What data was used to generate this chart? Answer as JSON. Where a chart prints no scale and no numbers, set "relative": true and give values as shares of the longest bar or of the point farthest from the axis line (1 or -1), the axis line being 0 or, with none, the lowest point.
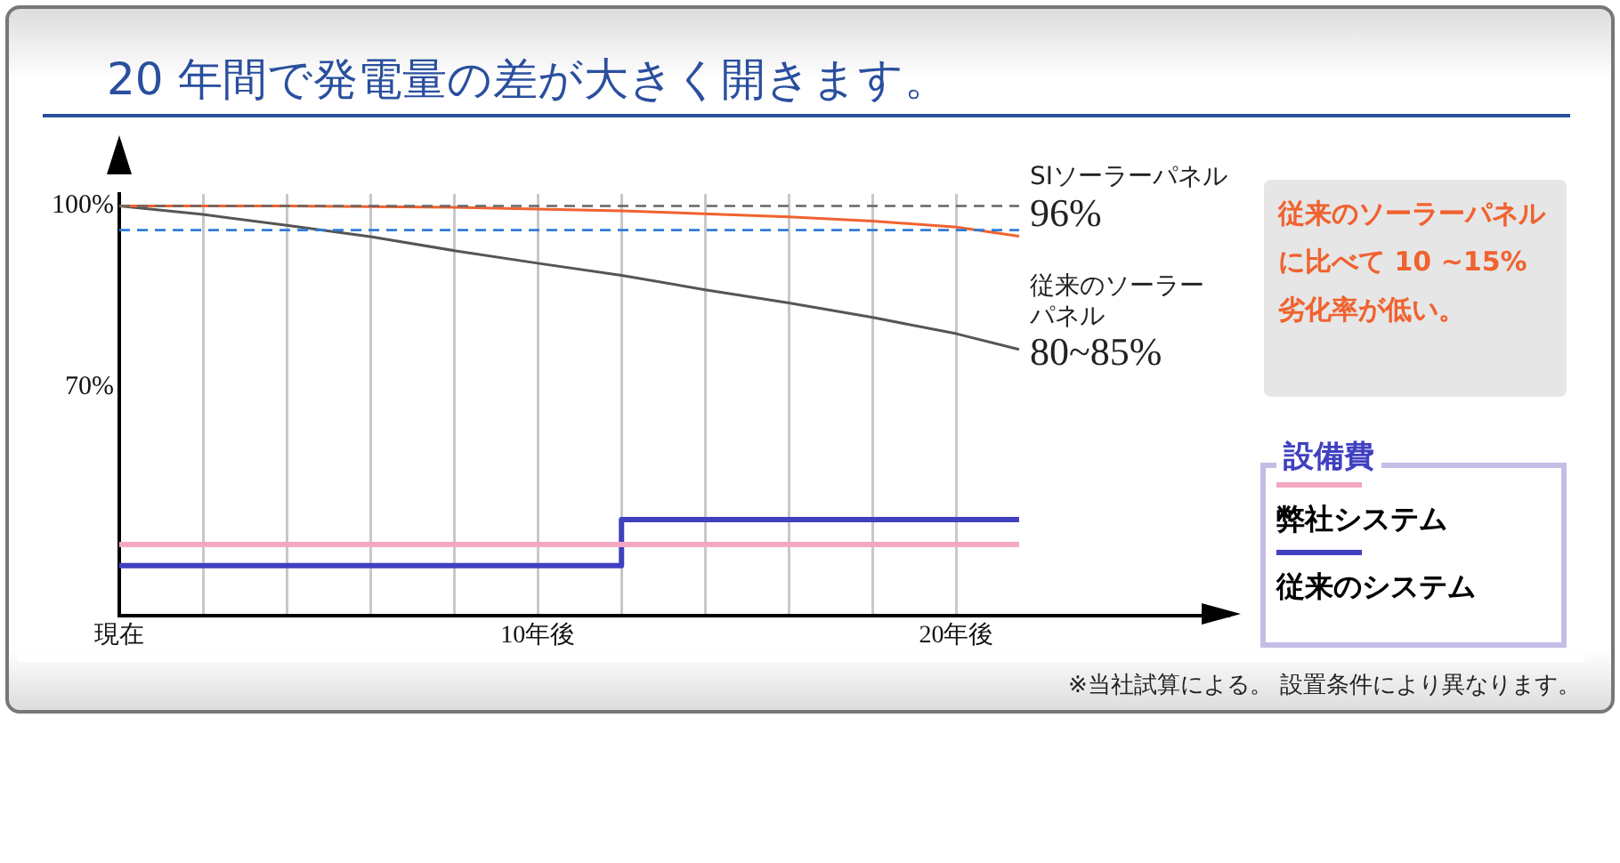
{
  "chart_data": [
    {
      "type": "line",
      "title": "20 年間で発電量の差が大きく開きます。",
      "xlim": [
        0,
        26.5
      ],
      "xticks": [
        {
          "value": 0,
          "label": null
        },
        {
          "value": 2,
          "label": null
        },
        {
          "value": 4,
          "label": null
        },
        {
          "value": 6,
          "label": null
        },
        {
          "value": 8,
          "label": null
        },
        {
          "value": 10,
          "label": null
        },
        {
          "value": 12,
          "label": null
        },
        {
          "value": 14,
          "label": null
        },
        {
          "value": 16,
          "label": null
        },
        {
          "value": 18,
          "label": null
        },
        {
          "value": 20,
          "label": null
        }
      ],
      "ylim": [
        32,
        102
      ],
      "tick_labels": "y",
      "yticks": [
        {
          "value": 70,
          "label": "70%"
        },
        {
          "value": 100,
          "label": "100%"
        }
      ],
      "grid": "x",
      "marker": "none",
      "series": [
        {
          "name": "SIソーラーパネル",
          "color": "#f0622f",
          "x": [
            0,
            4,
            8,
            10,
            12,
            16,
            18,
            20,
            21.5
          ],
          "values": [
            100,
            100,
            99.8,
            99.5,
            99.2,
            98.2,
            97.5,
            96.5,
            95
          ]
        },
        {
          "name": "従来のソーラーパネル",
          "color": "#555555",
          "x": [
            0,
            2,
            4,
            6,
            8,
            10,
            12,
            14,
            16,
            18,
            20,
            21.5
          ],
          "values": [
            100,
            98.6,
            96.8,
            94.9,
            92.6,
            90.5,
            88.5,
            86.1,
            83.9,
            81.5,
            78.8,
            76.2
          ]
        }
      ],
      "ref_lines": [
        {
          "axis": "y",
          "value": 100,
          "color": "#666666",
          "line_style": "dashed"
        },
        {
          "axis": "y",
          "value": 96,
          "color": "#2f7bd6",
          "line_style": "dashed"
        }
      ],
      "annotations": [
        "96%",
        "80~85%",
        "従来のソーラーパネルに比べて 10 ~15%劣化率が低い。"
      ]
    },
    {
      "type": "step",
      "relative": true,
      "xlim": [
        0,
        26.5
      ],
      "xticks": [
        {
          "value": 0,
          "label": "現在"
        },
        {
          "value": 10,
          "label": "10年後"
        },
        {
          "value": 20,
          "label": "20年後"
        }
      ],
      "tick_labels": "x",
      "marker": "none",
      "legend": "right",
      "legend_title": "設備費",
      "series": [
        {
          "name": "弊社システム",
          "color": "#f4a7c0",
          "x": [
            0,
            21.5
          ],
          "values": [
            0.74,
            0.74
          ]
        },
        {
          "name": "従来のシステム",
          "color": "#4040c0",
          "x": [
            0,
            12,
            21.5
          ],
          "values": [
            0.52,
            1,
            1
          ]
        }
      ],
      "annotations": [
        "※当社試算による。 設置条件により異なります。"
      ]
    }
  ]
}
